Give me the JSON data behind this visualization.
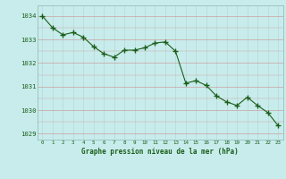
{
  "x": [
    0,
    1,
    2,
    3,
    4,
    5,
    6,
    7,
    8,
    9,
    10,
    11,
    12,
    13,
    14,
    15,
    16,
    17,
    18,
    19,
    20,
    21,
    22,
    23
  ],
  "y": [
    1034.0,
    1033.5,
    1033.2,
    1033.3,
    1033.1,
    1032.7,
    1032.4,
    1032.25,
    1032.55,
    1032.55,
    1032.65,
    1032.85,
    1032.9,
    1032.5,
    1031.15,
    1031.25,
    1031.05,
    1030.6,
    1030.35,
    1030.2,
    1030.55,
    1030.2,
    1029.9,
    1029.35
  ],
  "line_color": "#1a5e1a",
  "marker_color": "#1a5e1a",
  "bg_color": "#c8eceb",
  "grid_color_major": "#c8a0a0",
  "grid_color_minor": "#b8d8d6",
  "xlabel": "Graphe pression niveau de la mer (hPa)",
  "xlabel_color": "#1a5e1a",
  "tick_color": "#1a5e1a",
  "ylim": [
    1028.75,
    1034.45
  ],
  "xlim": [
    -0.5,
    23.5
  ],
  "yticks": [
    1029,
    1030,
    1031,
    1032,
    1033,
    1034
  ],
  "xticks": [
    0,
    1,
    2,
    3,
    4,
    5,
    6,
    7,
    8,
    9,
    10,
    11,
    12,
    13,
    14,
    15,
    16,
    17,
    18,
    19,
    20,
    21,
    22,
    23
  ],
  "xtick_labels": [
    "0",
    "1",
    "2",
    "3",
    "4",
    "5",
    "6",
    "7",
    "8",
    "9",
    "10",
    "11",
    "12",
    "13",
    "14",
    "15",
    "16",
    "17",
    "18",
    "19",
    "20",
    "21",
    "22",
    "23"
  ]
}
